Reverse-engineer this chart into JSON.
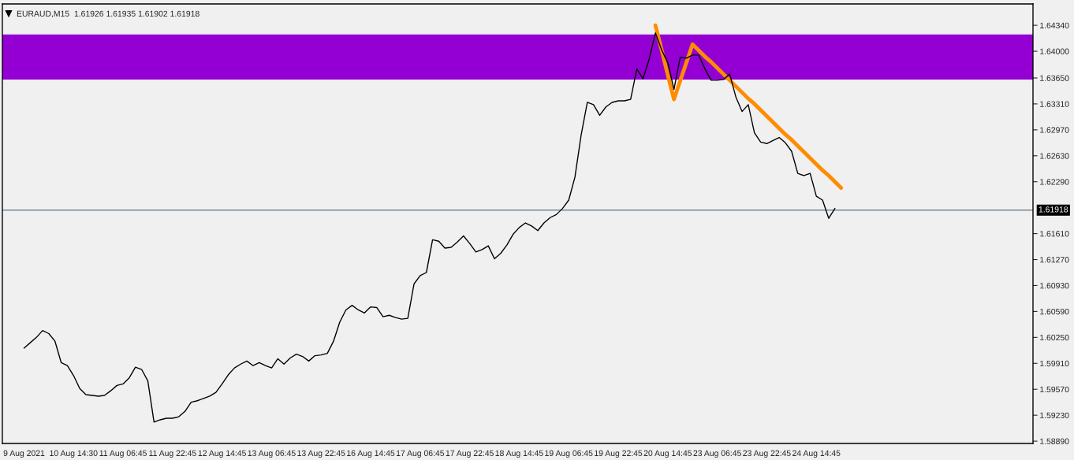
{
  "chart_data": {
    "type": "line",
    "title": "EURAUD,M15  1.61926 1.61935 1.61902 1.61918",
    "categories": [
      "9 Aug 2021",
      null,
      null,
      null,
      null,
      null,
      null,
      null,
      "10 Aug 14:30",
      null,
      null,
      null,
      null,
      null,
      null,
      null,
      "11 Aug 06:45",
      null,
      null,
      null,
      null,
      null,
      null,
      null,
      "11 Aug 22:45",
      null,
      null,
      null,
      null,
      null,
      null,
      null,
      "12 Aug 14:45",
      null,
      null,
      null,
      null,
      null,
      null,
      null,
      "13 Aug 06:45",
      null,
      null,
      null,
      null,
      null,
      null,
      null,
      "13 Aug 22:45",
      null,
      null,
      null,
      null,
      null,
      null,
      null,
      "16 Aug 14:45",
      null,
      null,
      null,
      null,
      null,
      null,
      null,
      "17 Aug 06:45",
      null,
      null,
      null,
      null,
      null,
      null,
      null,
      "17 Aug 22:45",
      null,
      null,
      null,
      null,
      null,
      null,
      null,
      "18 Aug 14:45",
      null,
      null,
      null,
      null,
      null,
      null,
      null,
      "19 Aug 06:45",
      null,
      null,
      null,
      null,
      null,
      null,
      null,
      "19 Aug 22:45",
      null,
      null,
      null,
      null,
      null,
      null,
      null,
      "20 Aug 14:45",
      null,
      null,
      null,
      null,
      null,
      null,
      null,
      "23 Aug 06:45",
      null,
      null,
      null,
      null,
      null,
      null,
      null,
      "23 Aug 22:45",
      null,
      null,
      null,
      null,
      null,
      null,
      null,
      "24 Aug 14:45",
      null,
      null,
      null,
      null,
      null,
      null,
      null,
      null,
      null,
      null,
      null,
      null,
      null,
      null,
      null,
      null,
      null,
      null,
      null,
      null,
      null,
      null,
      null,
      null,
      null,
      null,
      null,
      null,
      null,
      null,
      null,
      null,
      null,
      null,
      null
    ],
    "ylim": [
      1.5886,
      1.6462
    ],
    "yticks": [
      {
        "value": 1.6434,
        "label": "1.64340"
      },
      {
        "value": 1.64,
        "label": "1.64000"
      },
      {
        "value": 1.6365,
        "label": "1.63650"
      },
      {
        "value": 1.6331,
        "label": "1.63310"
      },
      {
        "value": 1.6297,
        "label": "1.62970"
      },
      {
        "value": 1.6263,
        "label": "1.62630"
      },
      {
        "value": 1.6229,
        "label": "1.62290"
      },
      {
        "value": 1.6161,
        "label": "1.61610"
      },
      {
        "value": 1.6127,
        "label": "1.61270"
      },
      {
        "value": 1.6093,
        "label": "1.60930"
      },
      {
        "value": 1.6059,
        "label": "1.60590"
      },
      {
        "value": 1.6025,
        "label": "1.60250"
      },
      {
        "value": 1.5991,
        "label": "1.59910"
      },
      {
        "value": 1.5957,
        "label": "1.59570"
      },
      {
        "value": 1.5923,
        "label": "1.59230"
      },
      {
        "value": 1.5889,
        "label": "1.58890"
      }
    ],
    "grid": false,
    "bands": [
      {
        "axis": "y",
        "from": 1.6363,
        "to": 1.6422,
        "color": "#9400d3"
      }
    ],
    "ref_lines": [
      {
        "axis": "y",
        "value": 1.61918,
        "label": "1.61918",
        "color": "#778899"
      }
    ],
    "series": [
      {
        "type": "line",
        "color": "#000000",
        "values": [
          1.6011,
          1.6018,
          1.6025,
          1.6034,
          1.603,
          1.602,
          1.5992,
          1.5988,
          1.5975,
          1.5958,
          1.595,
          1.5949,
          1.5948,
          1.5949,
          1.5955,
          1.5962,
          1.5964,
          1.5972,
          1.5986,
          1.5983,
          1.5968,
          1.5914,
          1.5917,
          1.5919,
          1.5919,
          1.5921,
          1.5928,
          1.594,
          1.5942,
          1.5945,
          1.5948,
          1.5953,
          1.5964,
          1.5976,
          1.5985,
          1.599,
          1.5994,
          1.5988,
          1.5992,
          1.5988,
          1.5985,
          1.5997,
          1.599,
          1.5998,
          1.6003,
          1.6,
          1.5994,
          1.6001,
          1.6002,
          1.6004,
          1.602,
          1.6045,
          1.6061,
          1.6067,
          1.6061,
          1.6057,
          1.6065,
          1.6064,
          1.6052,
          1.6054,
          1.6051,
          1.6049,
          1.605,
          1.6095,
          1.6106,
          1.611,
          1.6153,
          1.6151,
          1.6142,
          1.6143,
          1.615,
          1.6158,
          1.6148,
          1.6137,
          1.614,
          1.6145,
          1.6128,
          1.6135,
          1.6146,
          1.616,
          1.6169,
          1.6175,
          1.6171,
          1.6165,
          1.6175,
          1.6182,
          1.6186,
          1.6194,
          1.6205,
          1.6235,
          1.629,
          1.6333,
          1.633,
          1.6316,
          1.6327,
          1.6333,
          1.6335,
          1.6335,
          1.6337,
          1.6377,
          1.6364,
          1.639,
          1.6424,
          1.6402,
          1.6385,
          1.635,
          1.6392,
          1.6391,
          1.6395,
          1.6395,
          1.6377,
          1.6362,
          1.6362,
          1.6363,
          1.637,
          1.634,
          1.6321,
          1.633,
          1.6293,
          1.6281,
          1.6279,
          1.6283,
          1.6287,
          1.628,
          1.6269,
          1.624,
          1.6237,
          1.624,
          1.621,
          1.6205,
          1.6181,
          1.6194,
          null,
          null,
          null,
          null,
          null,
          null,
          null,
          null,
          null,
          null,
          null,
          null,
          null,
          null,
          null,
          null,
          null,
          null,
          null,
          null,
          null,
          null,
          null,
          null,
          null,
          null,
          null,
          null,
          null,
          null,
          null,
          null
        ]
      },
      {
        "type": "line",
        "color": "#ff8c00",
        "values": [
          null,
          null,
          null,
          null,
          null,
          null,
          null,
          null,
          null,
          null,
          null,
          null,
          null,
          null,
          null,
          null,
          null,
          null,
          null,
          null,
          null,
          null,
          null,
          null,
          null,
          null,
          null,
          null,
          null,
          null,
          null,
          null,
          null,
          null,
          null,
          null,
          null,
          null,
          null,
          null,
          null,
          null,
          null,
          null,
          null,
          null,
          null,
          null,
          null,
          null,
          null,
          null,
          null,
          null,
          null,
          null,
          null,
          null,
          null,
          null,
          null,
          null,
          null,
          null,
          null,
          null,
          null,
          null,
          null,
          null,
          null,
          null,
          null,
          null,
          null,
          null,
          null,
          null,
          null,
          null,
          null,
          null,
          null,
          null,
          null,
          null,
          null,
          null,
          null,
          null,
          null,
          null,
          null,
          null,
          null,
          null,
          null,
          null,
          null,
          null,
          null,
          null,
          1.6434,
          1.6402,
          1.6369,
          1.6337,
          1.6361,
          1.6385,
          1.6409,
          1.6401,
          1.6393,
          1.6386,
          1.6378,
          1.637,
          1.6362,
          1.6354,
          1.6346,
          1.6338,
          1.6331,
          1.6323,
          1.6315,
          1.6307,
          1.6299,
          1.6291,
          1.6284,
          1.6276,
          1.6268,
          1.626,
          1.6252,
          1.6244,
          1.6237,
          1.6229,
          1.6221,
          null,
          null,
          null,
          null,
          null,
          null,
          null,
          null,
          null,
          null,
          null,
          null,
          null,
          null,
          null,
          null,
          null,
          null,
          null,
          null,
          null,
          null,
          null,
          null,
          null,
          null,
          null,
          null,
          null,
          null,
          null
        ]
      }
    ]
  }
}
